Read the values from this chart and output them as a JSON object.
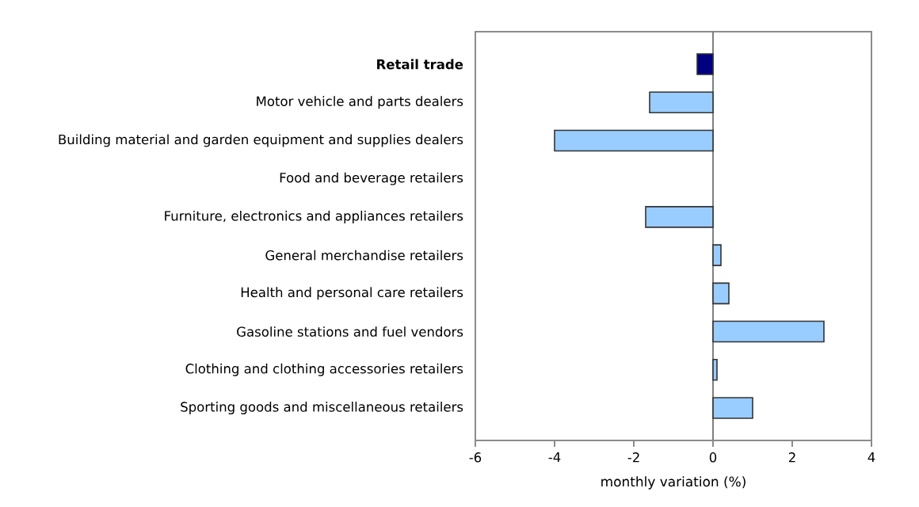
{
  "chart_data": {
    "type": "bar",
    "orientation": "horizontal",
    "xlabel": "monthly variation (%)",
    "categories": [
      "**Retail trade**",
      "Motor vehicle and parts dealers",
      "Building material and garden equipment and supplies dealers",
      "Food and beverage retailers",
      "Furniture, electronics and appliances retailers",
      "General merchandise retailers",
      "Health and personal care retailers",
      "Gasoline stations and fuel vendors",
      "Clothing and clothing accessories retailers",
      "Sporting goods and miscellaneous retailers"
    ],
    "values": [
      -0.4,
      -1.6,
      -4.0,
      0.0,
      -1.7,
      0.2,
      0.4,
      2.8,
      0.1,
      1.0
    ],
    "colors": [
      "#000080",
      "#99ccff",
      "#99ccff",
      "#99ccff",
      "#99ccff",
      "#99ccff",
      "#99ccff",
      "#99ccff",
      "#99ccff",
      "#99ccff"
    ],
    "xlim": [
      -6,
      4
    ],
    "xticks": [
      -6,
      -4,
      -2,
      0,
      2,
      4
    ],
    "ref_lines": [
      {
        "axis": "x",
        "value": 0,
        "color": "#808080"
      }
    ],
    "grid": false
  }
}
